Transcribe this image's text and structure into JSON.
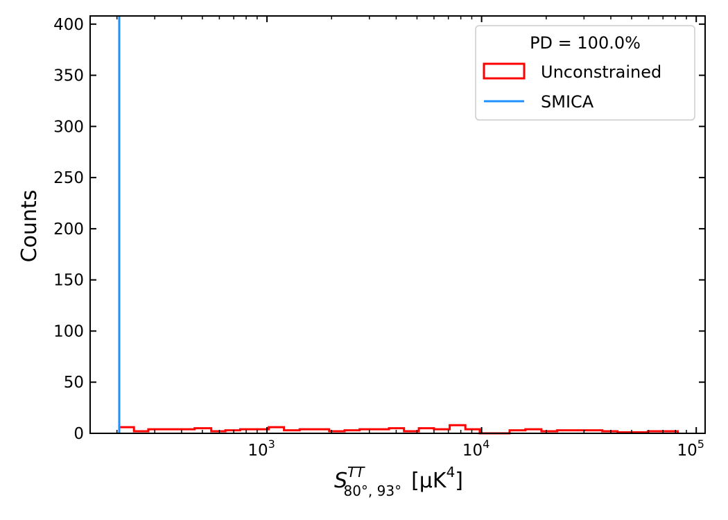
{
  "chart_data": {
    "type": "histogram",
    "x_scale": "log",
    "xlim": [
      150,
      110000
    ],
    "ylim": [
      0,
      408
    ],
    "x_tick_values": [
      1000,
      10000,
      100000
    ],
    "x_tick_labels": [
      {
        "base": "10",
        "exp": "3"
      },
      {
        "base": "10",
        "exp": "4"
      },
      {
        "base": "10",
        "exp": "5"
      }
    ],
    "y_ticks": [
      0,
      50,
      100,
      150,
      200,
      250,
      300,
      350,
      400
    ],
    "y_tick_labels": [
      "0",
      "50",
      "100",
      "150",
      "200",
      "250",
      "300",
      "350",
      "400"
    ],
    "xlabel": {
      "main": "S",
      "sup": "TT",
      "sub": "80°, 93°",
      "unit_open": "[μK",
      "unit_sup": "4",
      "unit_close": "]"
    },
    "ylabel": "Counts",
    "legend": {
      "title": "PD  = 100.0%",
      "placement": "upper-right",
      "entries": [
        "Unconstrained",
        "SMICA"
      ]
    },
    "series": [
      {
        "name": "Unconstrained",
        "kind": "step-histogram",
        "color": "#ff0000",
        "bin_edges": [
          205,
          240,
          280,
          330,
          390,
          460,
          550,
          640,
          750,
          870,
          1020,
          1200,
          1420,
          1660,
          1950,
          2300,
          2700,
          3150,
          3700,
          4350,
          5100,
          6000,
          7100,
          8400,
          9800,
          11500,
          13500,
          16000,
          19000,
          22500,
          26500,
          31000,
          36500,
          43000,
          50500,
          59500,
          70000,
          82000
        ],
        "counts": [
          6,
          2,
          4,
          4,
          4,
          5,
          2,
          3,
          4,
          4,
          6,
          3,
          4,
          4,
          2,
          3,
          4,
          4,
          5,
          2,
          5,
          4,
          8,
          4,
          0,
          0,
          3,
          4,
          2,
          3,
          3,
          3,
          2,
          1,
          1,
          2,
          2
        ]
      },
      {
        "name": "SMICA",
        "kind": "vline",
        "color": "#1e90ff",
        "x": 205
      }
    ]
  }
}
